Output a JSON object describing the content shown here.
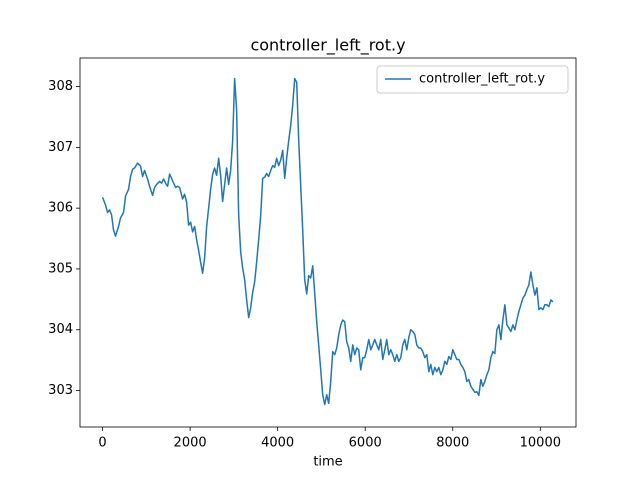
{
  "chart_data": {
    "type": "line",
    "title": "controller_left_rot.y",
    "xlabel": "time",
    "x": [
      0,
      69,
      114,
      160,
      206,
      251,
      297,
      366,
      411,
      480,
      526,
      594,
      640,
      686,
      731,
      800,
      869,
      914,
      960,
      1029,
      1074,
      1143,
      1189,
      1234,
      1303,
      1349,
      1394,
      1440,
      1486,
      1532,
      1577,
      1623,
      1669,
      1714,
      1760,
      1829,
      1874,
      1920,
      1966,
      2012,
      2057,
      2103,
      2149,
      2194,
      2240,
      2286,
      2332,
      2377,
      2423,
      2469,
      2515,
      2560,
      2606,
      2652,
      2697,
      2743,
      2789,
      2835,
      2880,
      2926,
      2972,
      3017,
      3063,
      3109,
      3155,
      3200,
      3246,
      3292,
      3338,
      3383,
      3429,
      3475,
      3520,
      3566,
      3612,
      3658,
      3703,
      3749,
      3795,
      3841,
      3886,
      3932,
      3978,
      4023,
      4069,
      4115,
      4161,
      4206,
      4252,
      4298,
      4343,
      4389,
      4435,
      4481,
      4526,
      4572,
      4618,
      4664,
      4709,
      4755,
      4801,
      4846,
      4892,
      4938,
      4984,
      5029,
      5075,
      5121,
      5166,
      5212,
      5258,
      5304,
      5349,
      5395,
      5441,
      5487,
      5532,
      5578,
      5624,
      5669,
      5715,
      5761,
      5807,
      5852,
      5898,
      5944,
      5989,
      6035,
      6081,
      6127,
      6172,
      6218,
      6264,
      6310,
      6355,
      6401,
      6447,
      6492,
      6538,
      6584,
      6630,
      6675,
      6721,
      6767,
      6812,
      6858,
      6904,
      6950,
      6995,
      7041,
      7087,
      7133,
      7178,
      7224,
      7270,
      7315,
      7361,
      7407,
      7453,
      7498,
      7544,
      7590,
      7635,
      7681,
      7727,
      7773,
      7818,
      7864,
      7910,
      7956,
      8001,
      8047,
      8093,
      8138,
      8184,
      8230,
      8276,
      8321,
      8367,
      8413,
      8458,
      8504,
      8550,
      8596,
      8641,
      8687,
      8733,
      8779,
      8824,
      8870,
      8916,
      8961,
      9007,
      9053,
      9099,
      9144,
      9190,
      9236,
      9281,
      9327,
      9373,
      9419,
      9464,
      9510,
      9556,
      9602,
      9647,
      9693,
      9739,
      9784,
      9830,
      9876,
      9922,
      9967,
      10013,
      10059,
      10104,
      10150,
      10196,
      10241,
      10287
    ],
    "series": [
      {
        "name": "controller_left_rot.y",
        "color": "#1f77b4",
        "values": [
          306.18,
          306.05,
          305.93,
          305.97,
          305.89,
          305.64,
          305.54,
          305.7,
          305.84,
          305.93,
          306.2,
          306.31,
          306.52,
          306.64,
          306.66,
          306.74,
          306.69,
          306.52,
          306.62,
          306.48,
          306.36,
          306.21,
          306.34,
          306.39,
          306.44,
          306.41,
          306.48,
          306.41,
          306.36,
          306.56,
          306.49,
          306.41,
          306.34,
          306.36,
          306.34,
          306.15,
          306.23,
          306.1,
          305.72,
          305.77,
          305.61,
          305.7,
          305.48,
          305.31,
          305.11,
          304.93,
          305.18,
          305.69,
          306.0,
          306.31,
          306.56,
          306.66,
          306.54,
          306.82,
          306.54,
          306.11,
          306.39,
          306.66,
          306.39,
          306.62,
          307.11,
          308.13,
          307.61,
          305.89,
          305.28,
          305.02,
          304.82,
          304.49,
          304.2,
          304.36,
          304.61,
          304.79,
          305.11,
          305.48,
          305.87,
          306.49,
          306.51,
          306.57,
          306.52,
          306.62,
          306.7,
          306.67,
          306.82,
          306.7,
          306.79,
          306.95,
          306.49,
          306.82,
          307.11,
          307.36,
          307.69,
          308.13,
          308.07,
          307.11,
          306.38,
          305.64,
          304.82,
          304.59,
          304.89,
          304.85,
          305.05,
          304.61,
          304.13,
          303.74,
          303.34,
          302.93,
          302.77,
          302.93,
          302.79,
          303.15,
          303.64,
          303.59,
          303.7,
          303.92,
          304.08,
          304.16,
          304.13,
          303.8,
          303.7,
          303.48,
          303.75,
          303.59,
          303.7,
          303.67,
          303.34,
          303.54,
          303.54,
          303.67,
          303.84,
          303.67,
          303.75,
          303.84,
          303.75,
          303.67,
          303.84,
          303.51,
          303.67,
          303.84,
          303.59,
          303.67,
          303.59,
          303.48,
          303.59,
          303.48,
          303.54,
          303.75,
          303.84,
          303.67,
          303.87,
          304.0,
          303.97,
          303.92,
          303.75,
          303.7,
          303.7,
          303.64,
          303.54,
          303.59,
          303.31,
          303.43,
          303.26,
          303.38,
          303.31,
          303.38,
          303.26,
          303.34,
          303.48,
          303.43,
          303.56,
          303.51,
          303.67,
          303.59,
          303.51,
          303.51,
          303.43,
          303.38,
          303.31,
          303.15,
          303.18,
          303.07,
          303.02,
          302.97,
          302.98,
          302.92,
          303.18,
          303.07,
          303.15,
          303.26,
          303.34,
          303.54,
          303.64,
          303.61,
          304.0,
          304.08,
          303.84,
          304.16,
          304.41,
          304.08,
          304.03,
          303.97,
          304.08,
          304.0,
          304.16,
          304.3,
          304.41,
          304.52,
          304.57,
          304.66,
          304.74,
          304.95,
          304.74,
          304.57,
          304.69,
          304.33,
          304.36,
          304.33,
          304.41,
          304.41,
          304.38,
          304.49,
          304.46
        ]
      }
    ],
    "xlim": [
      -515,
      10815
    ],
    "ylim": [
      302.4,
      308.47
    ],
    "xticks": [
      0,
      2000,
      4000,
      6000,
      8000,
      10000
    ],
    "yticks": [
      303,
      304,
      305,
      306,
      307,
      308
    ],
    "legend": "upper right"
  }
}
